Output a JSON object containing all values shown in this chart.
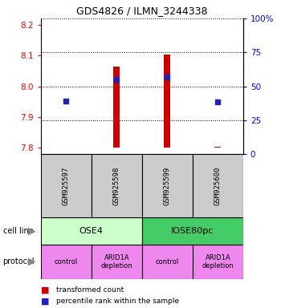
{
  "title": "GDS4826 / ILMN_3244338",
  "samples": [
    "GSM925597",
    "GSM925598",
    "GSM925599",
    "GSM925600"
  ],
  "bar_bottom": 7.8,
  "bar_tops": [
    7.802,
    8.065,
    8.102,
    7.803
  ],
  "blue_y": [
    7.952,
    8.022,
    8.03,
    7.948
  ],
  "ylim": [
    7.78,
    8.22
  ],
  "yticks_left": [
    7.8,
    7.9,
    8.0,
    8.1,
    8.2
  ],
  "yticks_right": [
    0,
    25,
    50,
    75,
    100
  ],
  "yticks_right_labels": [
    "0",
    "25",
    "50",
    "75",
    "100%"
  ],
  "bar_color": "#cc0000",
  "blue_color": "#2222bb",
  "bar_width": 0.12,
  "cell_line_colors": [
    "#ccffcc",
    "#44cc66"
  ],
  "protocol_color": "#ee88ee",
  "sample_box_color": "#cccccc",
  "legend_red_label": "transformed count",
  "legend_blue_label": "percentile rank within the sample",
  "cell_line_label": "cell line",
  "protocol_label": "protocol",
  "grid_dotted_pcts": [
    25,
    50,
    75,
    100
  ]
}
